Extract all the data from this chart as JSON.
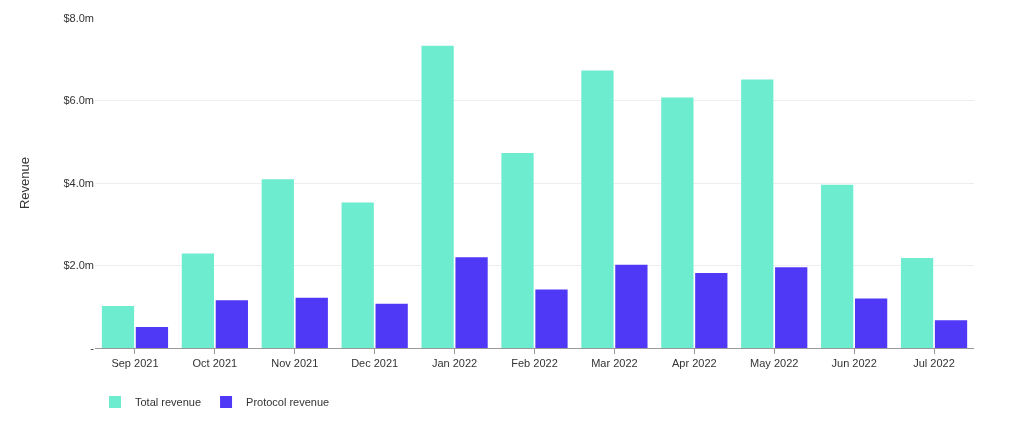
{
  "chart_data": {
    "type": "bar",
    "ylabel": "Revenue",
    "categories": [
      "Sep 2021",
      "Oct 2021",
      "Nov 2021",
      "Dec 2021",
      "Jan 2022",
      "Feb 2022",
      "Mar 2022",
      "Apr 2022",
      "May 2022",
      "Jun 2022",
      "Jul 2022"
    ],
    "series": [
      {
        "name": "Total revenue",
        "color": "#6eeccf",
        "values": [
          1.02,
          2.29,
          4.09,
          3.53,
          7.33,
          4.73,
          6.73,
          6.07,
          6.51,
          3.96,
          2.18
        ]
      },
      {
        "name": "Protocol revenue",
        "color": "#4f38f6",
        "values": [
          0.51,
          1.16,
          1.22,
          1.07,
          2.2,
          1.42,
          2.02,
          1.82,
          1.96,
          1.2,
          0.67
        ]
      }
    ],
    "ylim": [
      0,
      8
    ],
    "yticks": [
      {
        "value": 0,
        "label": "-"
      },
      {
        "value": 2,
        "label": "$2.0m"
      },
      {
        "value": 4,
        "label": "$4.0m"
      },
      {
        "value": 6,
        "label": "$6.0m"
      },
      {
        "value": 8,
        "label": "$8.0m"
      }
    ],
    "grid": "y",
    "legend": "bottom left"
  }
}
